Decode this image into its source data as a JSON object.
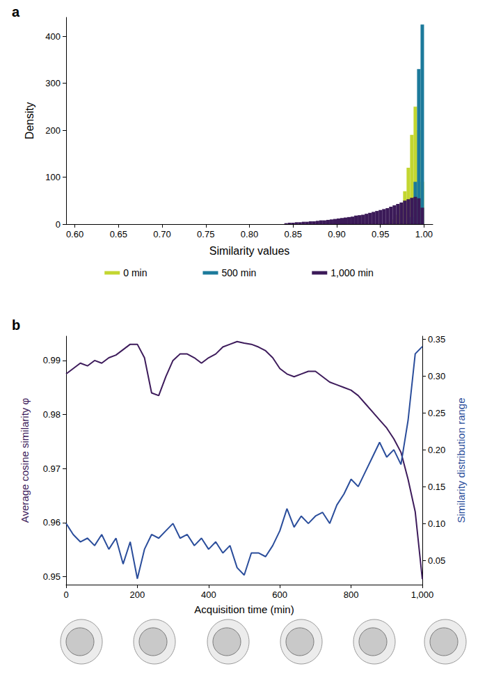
{
  "chart_data": [
    {
      "type": "histogram",
      "title": "a",
      "xlabel": "Similarity values",
      "ylabel": "Density",
      "bins": [
        0.84,
        0.844,
        0.848,
        0.852,
        0.856,
        0.86,
        0.864,
        0.868,
        0.872,
        0.876,
        0.88,
        0.884,
        0.888,
        0.892,
        0.896,
        0.9,
        0.904,
        0.908,
        0.912,
        0.916,
        0.92,
        0.924,
        0.928,
        0.932,
        0.936,
        0.94,
        0.944,
        0.948,
        0.952,
        0.956,
        0.96,
        0.964,
        0.968,
        0.972,
        0.976,
        0.98,
        0.984,
        0.988,
        0.992,
        0.996,
        1.0
      ],
      "series": [
        {
          "name": "0 min",
          "color": "#c3d630",
          "values": [
            0,
            0,
            0,
            0,
            0,
            0,
            0,
            0,
            0,
            0,
            0,
            0,
            0,
            0,
            0,
            0,
            0,
            0,
            0,
            0,
            0,
            0,
            0,
            0,
            0,
            0,
            0,
            0,
            0,
            2,
            5,
            10,
            20,
            40,
            70,
            120,
            190,
            250,
            200,
            90
          ]
        },
        {
          "name": "500 min",
          "color": "#1c7a9b",
          "values": [
            0,
            0,
            0,
            0,
            0,
            0,
            0,
            0,
            0,
            0,
            0,
            0,
            0,
            0,
            0,
            0,
            0,
            0,
            0,
            0,
            0,
            0,
            0,
            0,
            0,
            0,
            0,
            0,
            0,
            0,
            0,
            0,
            0,
            0,
            0,
            0,
            15,
            90,
            330,
            425
          ]
        },
        {
          "name": "1,000 min",
          "color": "#3b1a58",
          "values": [
            2,
            3,
            3,
            4,
            4,
            5,
            5,
            6,
            6,
            7,
            8,
            8,
            9,
            10,
            11,
            12,
            13,
            14,
            15,
            16,
            18,
            19,
            20,
            22,
            24,
            26,
            28,
            30,
            32,
            34,
            37,
            40,
            43,
            46,
            50,
            53,
            56,
            58,
            55,
            35
          ]
        }
      ],
      "xlim": [
        0.59,
        1.01
      ],
      "xticks": [
        {
          "value": 0.6,
          "label": "0.60"
        },
        0.65,
        {
          "value": 0.7,
          "label": "0.70"
        },
        0.75,
        {
          "value": 0.8,
          "label": "0.80"
        },
        0.85,
        {
          "value": 0.9,
          "label": "0.90"
        },
        0.95,
        {
          "value": 1.0,
          "label": "1.00"
        }
      ],
      "ylim": [
        0,
        440
      ],
      "yticks": [
        0,
        100,
        200,
        300,
        400
      ],
      "legend": "bottom",
      "grid": false
    },
    {
      "type": "line",
      "title": "b",
      "xlabel": "Acquisition time (min)",
      "ylabel": "Average cosine similarity φ",
      "y2label": "Similarity distribution range",
      "x": [
        0,
        20,
        40,
        60,
        80,
        100,
        120,
        140,
        160,
        180,
        200,
        220,
        240,
        260,
        280,
        300,
        320,
        340,
        360,
        380,
        400,
        420,
        440,
        460,
        480,
        500,
        520,
        540,
        560,
        580,
        600,
        620,
        640,
        660,
        680,
        700,
        720,
        740,
        760,
        780,
        800,
        820,
        840,
        860,
        880,
        900,
        920,
        940,
        960,
        980,
        1000
      ],
      "series": [
        {
          "color": "#3d1b5b",
          "values": [
            0.9875,
            0.9885,
            0.9895,
            0.989,
            0.99,
            0.9895,
            0.9905,
            0.991,
            0.992,
            0.993,
            0.993,
            0.9905,
            0.984,
            0.9835,
            0.987,
            0.99,
            0.9912,
            0.9912,
            0.9905,
            0.9895,
            0.9905,
            0.9912,
            0.9925,
            0.993,
            0.9935,
            0.9932,
            0.993,
            0.9925,
            0.9918,
            0.9905,
            0.9885,
            0.9875,
            0.987,
            0.9875,
            0.988,
            0.988,
            0.987,
            0.986,
            0.9855,
            0.985,
            0.9845,
            0.9835,
            0.982,
            0.9805,
            0.979,
            0.9775,
            0.9755,
            0.973,
            0.968,
            0.962,
            0.9495
          ]
        },
        {
          "color": "#2a4d9b",
          "axis": "y2",
          "values": [
            0.1,
            0.085,
            0.075,
            0.08,
            0.07,
            0.085,
            0.065,
            0.08,
            0.045,
            0.075,
            0.025,
            0.065,
            0.085,
            0.08,
            0.09,
            0.1,
            0.08,
            0.085,
            0.07,
            0.08,
            0.065,
            0.075,
            0.06,
            0.07,
            0.04,
            0.03,
            0.06,
            0.06,
            0.055,
            0.07,
            0.09,
            0.12,
            0.095,
            0.11,
            0.1,
            0.11,
            0.115,
            0.1,
            0.125,
            0.14,
            0.16,
            0.15,
            0.17,
            0.19,
            0.21,
            0.19,
            0.2,
            0.18,
            0.24,
            0.33,
            0.34
          ]
        }
      ],
      "xlim": [
        0,
        1000
      ],
      "xticks": [
        0,
        200,
        400,
        600,
        800,
        {
          "value": 1000,
          "label": "1,000"
        }
      ],
      "ylim": [
        0.9485,
        0.9945
      ],
      "yticks": [
        0.95,
        0.96,
        0.97,
        0.98,
        0.99
      ],
      "y2lim": [
        0.017,
        0.354
      ],
      "y2ticks": [
        {
          "value": 0.05,
          "label": "0.05"
        },
        {
          "value": 0.1,
          "label": "0.10"
        },
        0.15,
        {
          "value": 0.2,
          "label": "0.20"
        },
        0.25,
        {
          "value": 0.3,
          "label": "0.30"
        },
        0.35
      ],
      "grid": false
    }
  ]
}
